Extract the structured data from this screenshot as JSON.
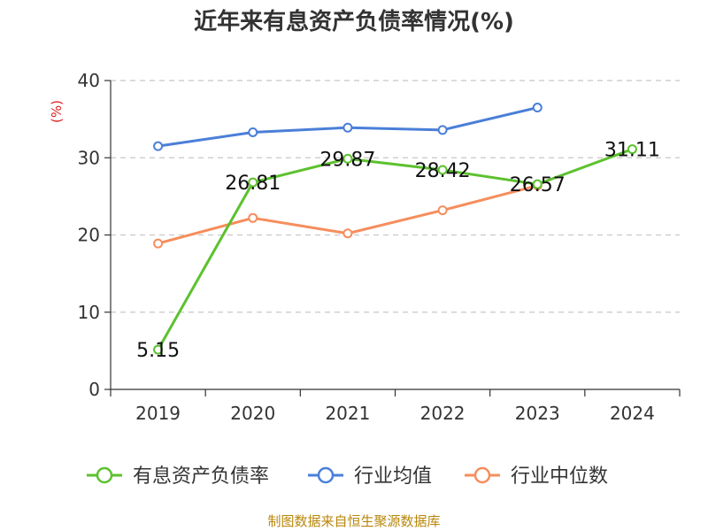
{
  "chart_data": {
    "type": "line",
    "title": "近年来有息资产负债率情况(%)",
    "ylabel": "(%)",
    "xlabel": "",
    "categories": [
      "2019",
      "2020",
      "2021",
      "2022",
      "2023",
      "2024"
    ],
    "ylim": [
      0,
      40
    ],
    "yticks": [
      0,
      10,
      20,
      30,
      40
    ],
    "grid": "horizontal-dashed",
    "legend_position": "bottom",
    "series": [
      {
        "name": "有息资产负债率",
        "color": "#5cc12e",
        "values": [
          5.15,
          26.81,
          29.87,
          28.42,
          26.57,
          31.11
        ],
        "labels": [
          "5.15",
          "26.81",
          "29.87",
          "28.42",
          "26.57",
          "31.11"
        ],
        "show_labels": true
      },
      {
        "name": "行业均值",
        "color": "#4a7fd8",
        "values": [
          31.5,
          33.3,
          33.9,
          33.6,
          36.5,
          null
        ],
        "show_labels": false
      },
      {
        "name": "行业中位数",
        "color": "#f68d5c",
        "values": [
          18.9,
          22.2,
          20.2,
          23.2,
          26.4,
          null
        ],
        "show_labels": false
      }
    ]
  },
  "source": "制图数据来自恒生聚源数据库"
}
